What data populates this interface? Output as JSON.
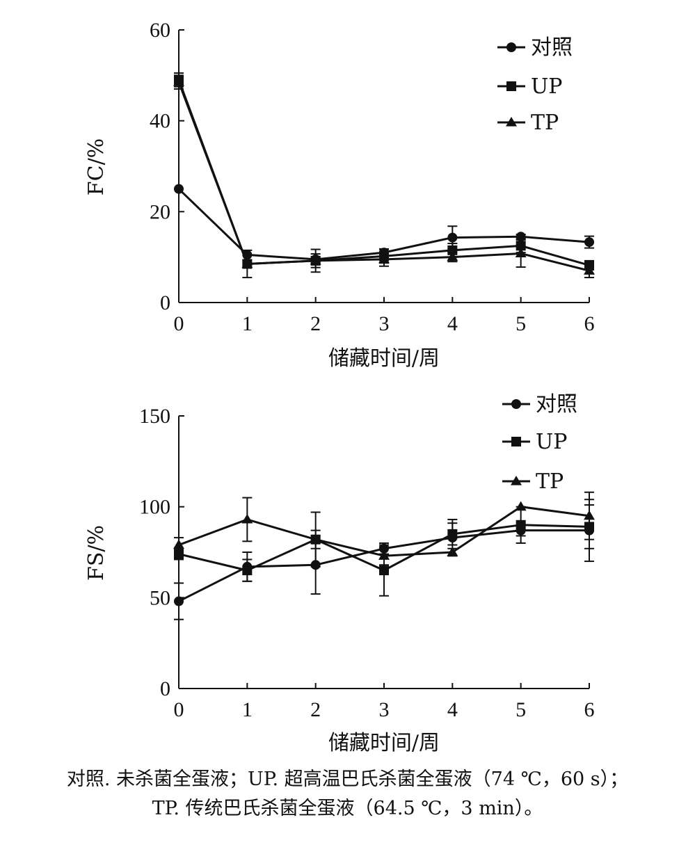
{
  "chart_data": [
    {
      "type": "line",
      "xlabel": "储藏时间/周",
      "ylabel": "FC/%",
      "ylim": [
        0,
        60
      ],
      "yticks": [
        0,
        20,
        40,
        60
      ],
      "x": [
        0,
        1,
        2,
        3,
        4,
        5,
        6
      ],
      "grid": false,
      "legend_position": "top-right",
      "series": [
        {
          "name": "对照",
          "marker": "circle",
          "values": [
            25,
            10.5,
            9.5,
            11,
            14.3,
            14.5,
            13.3
          ],
          "errors": [
            0,
            0,
            0.5,
            0.8,
            2.5,
            0.5,
            1.3
          ]
        },
        {
          "name": "UP",
          "marker": "square",
          "values": [
            49,
            8.5,
            9.2,
            10.2,
            11.5,
            12.5,
            8.2
          ],
          "errors": [
            1.5,
            0.8,
            1.5,
            1.5,
            1.5,
            1.5,
            1.0
          ]
        },
        {
          "name": "TP",
          "marker": "triangle",
          "values": [
            48.5,
            8.5,
            9.2,
            9.5,
            10,
            10.8,
            7
          ],
          "errors": [
            1.5,
            3,
            2.5,
            1.5,
            1.0,
            3,
            1.5
          ]
        }
      ]
    },
    {
      "type": "line",
      "xlabel": "储藏时间/周",
      "ylabel": "FS/%",
      "ylim": [
        0,
        150
      ],
      "yticks": [
        0,
        50,
        100,
        150
      ],
      "x": [
        0,
        1,
        2,
        3,
        4,
        5,
        6
      ],
      "grid": false,
      "legend_position": "top-right",
      "series": [
        {
          "name": "对照",
          "marker": "circle",
          "values": [
            48,
            67,
            68,
            77,
            83,
            87,
            87
          ],
          "errors": [
            10,
            8,
            16,
            3,
            10,
            3,
            17
          ]
        },
        {
          "name": "UP",
          "marker": "square",
          "values": [
            74,
            65,
            82,
            65,
            85,
            90,
            89
          ],
          "errors": [
            3,
            6,
            15,
            14,
            6,
            10,
            12
          ]
        },
        {
          "name": "TP",
          "marker": "triangle",
          "values": [
            79,
            93,
            82,
            73,
            75,
            100,
            95
          ],
          "errors": [
            4,
            12,
            5,
            5,
            2,
            0,
            13
          ]
        }
      ]
    }
  ],
  "caption": {
    "line1": "对照. 未杀菌全蛋液；UP. 超高温巴氏杀菌全蛋液（74 ℃，60 s）；",
    "line2": "TP. 传统巴氏杀菌全蛋液（64.5 ℃，3 min）。"
  }
}
